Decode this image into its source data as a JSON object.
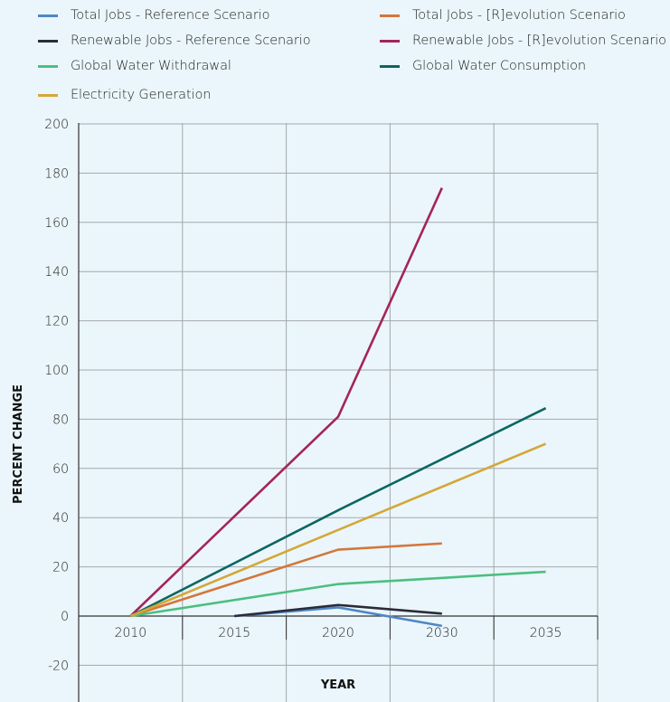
{
  "chart_data": {
    "type": "line",
    "xlabel": "YEAR",
    "ylabel": "PERCENT CHANGE",
    "categories": [
      "2010",
      "2015",
      "2020",
      "2030",
      "2035"
    ],
    "ylim": [
      -20,
      200
    ],
    "yticks": [
      200,
      180,
      160,
      140,
      120,
      100,
      80,
      60,
      40,
      20,
      0,
      -20
    ],
    "grid": true,
    "legend_position": "top",
    "series": [
      {
        "name": "Total Jobs - Reference Scenario",
        "color": "#4f86c6",
        "points": [
          [
            "2015",
            0
          ],
          [
            "2020",
            3.5
          ],
          [
            "2030",
            -4
          ]
        ]
      },
      {
        "name": "Total Jobs - [R]evolution Scenario",
        "color": "#d4763b",
        "points": [
          [
            "2010",
            0
          ],
          [
            "2020",
            27
          ],
          [
            "2030",
            29.5
          ]
        ]
      },
      {
        "name": "Renewable Jobs - Reference Scenario",
        "color": "#2b2b3a",
        "points": [
          [
            "2015",
            0
          ],
          [
            "2020",
            4.5
          ],
          [
            "2030",
            1
          ]
        ]
      },
      {
        "name": "Renewable Jobs - [R]evolution Scenario",
        "color": "#a5245a",
        "points": [
          [
            "2010",
            0
          ],
          [
            "2020",
            81
          ],
          [
            "2030",
            174
          ]
        ]
      },
      {
        "name": "Global Water Withdrawal",
        "color": "#4cbf7f",
        "points": [
          [
            "2010",
            0
          ],
          [
            "2020",
            13
          ],
          [
            "2035",
            18
          ]
        ]
      },
      {
        "name": "Global Water Consumption",
        "color": "#0b6661",
        "points": [
          [
            "2010",
            0
          ],
          [
            "2020",
            43
          ],
          [
            "2035",
            84.5
          ]
        ]
      },
      {
        "name": "Electricity Generation",
        "color": "#d4a738",
        "points": [
          [
            "2010",
            0
          ],
          [
            "2035",
            70
          ]
        ]
      }
    ]
  }
}
